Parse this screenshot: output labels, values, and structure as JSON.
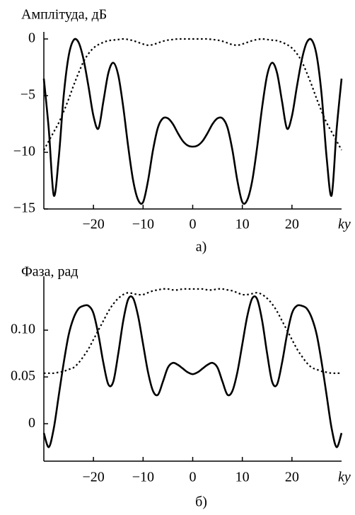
{
  "chart_data": [
    {
      "type": "line",
      "title": "Амплітуда, дБ",
      "xlabel": "ky",
      "caption": "а)",
      "x": [
        -30,
        -29,
        -28,
        -27,
        -26,
        -25,
        -24,
        -23,
        -22,
        -21,
        -20,
        -19,
        -18,
        -17,
        -16,
        -15,
        -14,
        -13,
        -12,
        -11,
        -10,
        -9,
        -8,
        -7,
        -6,
        -5,
        -4,
        -3,
        -2,
        -1,
        0,
        1,
        2,
        3,
        4,
        5,
        6,
        7,
        8,
        9,
        10,
        11,
        12,
        13,
        14,
        15,
        16,
        17,
        18,
        19,
        20,
        21,
        22,
        23,
        24,
        25,
        26,
        27,
        28,
        29,
        30
      ],
      "series": [
        {
          "color": "#000000",
          "line_style": "solid",
          "values": [
            -3.5,
            -8,
            -13.8,
            -10.5,
            -5,
            -1.5,
            -0.1,
            -0.3,
            -1.8,
            -4.2,
            -6.8,
            -7.9,
            -5.5,
            -3,
            -2.1,
            -3.2,
            -6,
            -9.5,
            -12.5,
            -14.2,
            -14.4,
            -12.5,
            -9.8,
            -7.8,
            -7,
            -7,
            -7.5,
            -8.3,
            -9,
            -9.4,
            -9.5,
            -9.4,
            -9,
            -8.3,
            -7.5,
            -7,
            -7,
            -7.8,
            -9.8,
            -12.5,
            -14.4,
            -14.2,
            -12.5,
            -9.5,
            -6,
            -3.2,
            -2.1,
            -3,
            -5.5,
            -7.9,
            -6.8,
            -4.2,
            -1.8,
            -0.3,
            -0.1,
            -1.5,
            -5,
            -10.5,
            -13.8,
            -8,
            -3.5
          ]
        },
        {
          "color": "#000000",
          "line_style": "dotted",
          "values": [
            -9.8,
            -9,
            -8.2,
            -7.4,
            -6.4,
            -5.3,
            -4.1,
            -3,
            -2,
            -1.3,
            -0.8,
            -0.5,
            -0.3,
            -0.15,
            -0.1,
            -0.05,
            0,
            -0.05,
            -0.15,
            -0.3,
            -0.45,
            -0.55,
            -0.5,
            -0.35,
            -0.2,
            -0.1,
            -0.05,
            0,
            0,
            0,
            0,
            0,
            0,
            0,
            -0.05,
            -0.1,
            -0.2,
            -0.35,
            -0.5,
            -0.55,
            -0.45,
            -0.3,
            -0.15,
            -0.05,
            0,
            -0.05,
            -0.1,
            -0.15,
            -0.3,
            -0.5,
            -0.8,
            -1.3,
            -2,
            -3,
            -4.1,
            -5.3,
            -6.4,
            -7.4,
            -8.2,
            -9,
            -9.8
          ]
        }
      ],
      "xlim": [
        -30,
        30
      ],
      "xticks": [
        {
          "value": -20,
          "label": "−20"
        },
        {
          "value": -10,
          "label": "−10"
        },
        0,
        10,
        20
      ],
      "ylim": [
        -15,
        0
      ],
      "yticks": [
        0,
        {
          "value": -5,
          "label": "−5"
        },
        {
          "value": -10,
          "label": "−10"
        },
        {
          "value": -15,
          "label": "−15"
        }
      ]
    },
    {
      "type": "line",
      "title": "Фаза, рад",
      "xlabel": "ky",
      "caption": "б)",
      "x": [
        -30,
        -29,
        -28,
        -27,
        -26,
        -25,
        -24,
        -23,
        -22,
        -21,
        -20,
        -19,
        -18,
        -17,
        -16,
        -15,
        -14,
        -13,
        -12,
        -11,
        -10,
        -9,
        -8,
        -7,
        -6,
        -5,
        -4,
        -3,
        -2,
        -1,
        0,
        1,
        2,
        3,
        4,
        5,
        6,
        7,
        8,
        9,
        10,
        11,
        12,
        13,
        14,
        15,
        16,
        17,
        18,
        19,
        20,
        21,
        22,
        23,
        24,
        25,
        26,
        27,
        28,
        29,
        30
      ],
      "series": [
        {
          "color": "#000000",
          "line_style": "solid",
          "values": [
            -0.01,
            -0.025,
            -0.005,
            0.03,
            0.065,
            0.095,
            0.113,
            0.123,
            0.126,
            0.126,
            0.118,
            0.095,
            0.065,
            0.042,
            0.045,
            0.075,
            0.11,
            0.133,
            0.134,
            0.115,
            0.085,
            0.055,
            0.035,
            0.031,
            0.045,
            0.06,
            0.065,
            0.063,
            0.059,
            0.055,
            0.053,
            0.055,
            0.059,
            0.063,
            0.065,
            0.06,
            0.045,
            0.031,
            0.035,
            0.055,
            0.085,
            0.115,
            0.134,
            0.133,
            0.11,
            0.075,
            0.045,
            0.042,
            0.065,
            0.095,
            0.118,
            0.126,
            0.126,
            0.123,
            0.113,
            0.095,
            0.065,
            0.03,
            -0.005,
            -0.025,
            -0.01
          ]
        },
        {
          "color": "#000000",
          "line_style": "dotted",
          "values": [
            0.054,
            0.054,
            0.054,
            0.055,
            0.056,
            0.058,
            0.06,
            0.065,
            0.072,
            0.08,
            0.09,
            0.1,
            0.11,
            0.12,
            0.128,
            0.134,
            0.138,
            0.14,
            0.139,
            0.138,
            0.138,
            0.14,
            0.142,
            0.143,
            0.144,
            0.144,
            0.143,
            0.143,
            0.144,
            0.144,
            0.144,
            0.144,
            0.144,
            0.143,
            0.143,
            0.144,
            0.144,
            0.143,
            0.142,
            0.14,
            0.138,
            0.138,
            0.139,
            0.14,
            0.138,
            0.134,
            0.128,
            0.12,
            0.11,
            0.1,
            0.09,
            0.08,
            0.072,
            0.065,
            0.06,
            0.058,
            0.056,
            0.055,
            0.054,
            0.054,
            0.054
          ]
        }
      ],
      "xlim": [
        -30,
        30
      ],
      "xticks": [
        {
          "value": -20,
          "label": "−20"
        },
        {
          "value": -10,
          "label": "−10"
        },
        0,
        10,
        20
      ],
      "ylim": [
        -0.04,
        0.15
      ],
      "yticks": [
        0,
        0.05,
        {
          "value": 0.1,
          "label": "0.10"
        }
      ]
    }
  ]
}
